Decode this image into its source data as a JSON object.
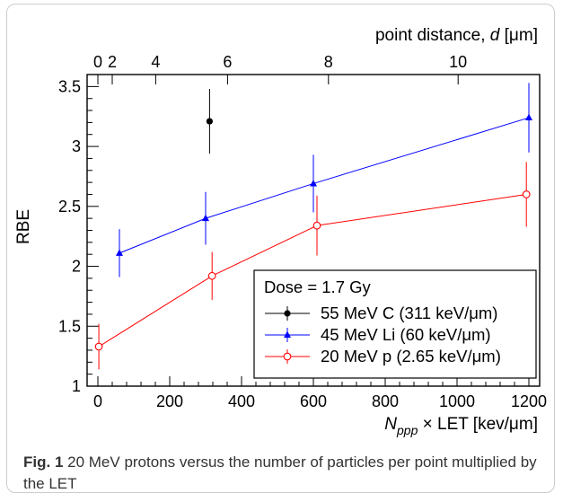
{
  "chart_data": {
    "type": "scatter",
    "ylabel": "RBE",
    "xlabel": {
      "n": "N",
      "sub": "ppp",
      "rest": " × LET  [kev/μm]"
    },
    "x2label": {
      "pre": "point distance, ",
      "var": "d",
      "post": " [μm]"
    },
    "xlim": [
      -30,
      1230
    ],
    "ylim": [
      1,
      3.6
    ],
    "x_ticks": [
      "0",
      "200",
      "400",
      "600",
      "800",
      "1000",
      "1200"
    ],
    "y_ticks": [
      "1",
      "1.5",
      "2",
      "2.5",
      "3",
      "3.5"
    ],
    "x2_ticks": [
      {
        "label": "0",
        "x": 0
      },
      {
        "label": "2",
        "x": 40
      },
      {
        "label": "4",
        "x": 161
      },
      {
        "label": "6",
        "x": 361
      },
      {
        "label": "8",
        "x": 642
      },
      {
        "label": "10",
        "x": 1003
      }
    ],
    "legend_title": "Dose = 1.7 Gy",
    "legend_position": "bottom-right",
    "series": [
      {
        "name": "55 MeV C (311 keV/μm)",
        "color": "#000000",
        "marker": "filled-circle",
        "connected": false,
        "points": [
          {
            "x": 311,
            "y": 3.21,
            "err": 0.27
          }
        ]
      },
      {
        "name": "45 MeV Li (60 keV/μm)",
        "color": "#0000ff",
        "marker": "filled-triangle",
        "connected": true,
        "points": [
          {
            "x": 60,
            "y": 2.11,
            "err": 0.2
          },
          {
            "x": 300,
            "y": 2.4,
            "err": 0.22
          },
          {
            "x": 600,
            "y": 2.69,
            "err": 0.24
          },
          {
            "x": 1200,
            "y": 3.24,
            "err": 0.29
          }
        ]
      },
      {
        "name": "20 MeV p (2.65 keV/μm)",
        "color": "#ff0000",
        "marker": "open-circle",
        "connected": true,
        "points": [
          {
            "x": 2.65,
            "y": 1.33,
            "err": 0.19
          },
          {
            "x": 318,
            "y": 1.92,
            "err": 0.2
          },
          {
            "x": 610,
            "y": 2.34,
            "err": 0.25
          },
          {
            "x": 1193,
            "y": 2.6,
            "err": 0.27
          }
        ]
      }
    ]
  },
  "caption": {
    "label": "Fig. 1",
    "text": " 20 MeV protons versus the number of particles per point multiplied by the LET"
  }
}
